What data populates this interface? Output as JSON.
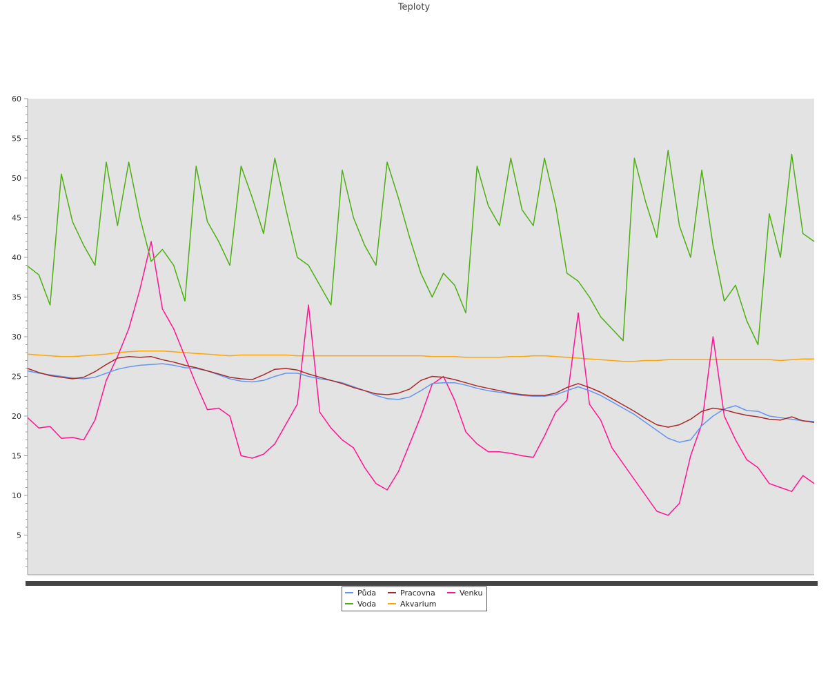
{
  "chart_data": {
    "type": "line",
    "title": "Teploty",
    "xlabel": "",
    "ylabel": "",
    "x_ticks_legible": false,
    "ylim": [
      0,
      60
    ],
    "yticks": [
      5,
      10,
      15,
      20,
      25,
      30,
      35,
      40,
      45,
      50,
      55,
      60
    ],
    "grid": false,
    "background": "#e3e3e3",
    "legend_position": "bottom-center",
    "x": [
      0,
      2,
      4,
      6,
      8,
      10,
      12,
      14,
      16,
      18,
      20,
      22,
      24,
      26,
      28,
      30,
      32,
      34,
      36,
      38,
      40,
      42,
      44,
      46,
      48,
      50,
      52,
      54,
      56,
      58,
      60,
      62,
      64,
      66,
      68,
      70,
      72,
      74,
      76,
      78,
      80,
      82,
      84,
      86,
      88,
      90,
      92,
      94,
      96,
      98,
      100,
      102,
      104,
      106,
      108,
      110,
      112,
      114,
      116,
      118,
      120,
      122,
      124,
      126,
      128,
      130,
      132,
      134,
      136,
      138,
      140
    ],
    "series": [
      {
        "name": "Půda",
        "color": "#6495ed",
        "values": [
          25.7,
          25.4,
          25.2,
          25.0,
          24.8,
          24.7,
          24.9,
          25.4,
          25.9,
          26.2,
          26.4,
          26.5,
          26.6,
          26.4,
          26.1,
          26.0,
          25.7,
          25.2,
          24.7,
          24.4,
          24.3,
          24.5,
          25.0,
          25.4,
          25.4,
          25.0,
          24.7,
          24.5,
          24.2,
          23.7,
          23.2,
          22.6,
          22.2,
          22.1,
          22.4,
          23.2,
          24.1,
          24.2,
          24.2,
          23.9,
          23.5,
          23.2,
          23.0,
          22.8,
          22.6,
          22.5,
          22.5,
          22.7,
          23.2,
          23.7,
          23.2,
          22.6,
          21.8,
          21.0,
          20.2,
          19.2,
          18.2,
          17.2,
          16.7,
          17.0,
          18.8,
          20.0,
          20.9,
          21.3,
          20.7,
          20.6,
          20.0,
          19.8,
          19.6,
          19.4,
          19.3
        ]
      },
      {
        "name": "Voda",
        "color": "#4caf10",
        "values": [
          38.9,
          37.8,
          34.0,
          50.5,
          44.5,
          41.5,
          39.0,
          52.0,
          44.0,
          52.0,
          45.0,
          39.5,
          41.0,
          39.0,
          34.5,
          51.5,
          44.5,
          42.0,
          39.0,
          51.5,
          47.5,
          43.0,
          52.5,
          46.0,
          40.0,
          39.0,
          36.5,
          34.0,
          51.0,
          45.0,
          41.5,
          39.0,
          52.0,
          47.5,
          42.5,
          38.0,
          35.0,
          38.0,
          36.5,
          33.0,
          51.5,
          46.5,
          44.0,
          52.5,
          46.0,
          44.0,
          52.5,
          46.5,
          38.0,
          37.0,
          35.0,
          32.5,
          31.0,
          29.5,
          52.5,
          47.0,
          42.5,
          53.5,
          44.0,
          40.0,
          51.0,
          41.5,
          34.5,
          36.5,
          32.0,
          29.0,
          45.5,
          40.0,
          53.0,
          43.0,
          42.0
        ]
      },
      {
        "name": "Pracovna",
        "color": "#a52a2a",
        "values": [
          26.0,
          25.5,
          25.1,
          24.9,
          24.7,
          24.9,
          25.6,
          26.5,
          27.3,
          27.5,
          27.4,
          27.5,
          27.1,
          26.8,
          26.4,
          26.1,
          25.7,
          25.3,
          24.9,
          24.7,
          24.6,
          25.2,
          25.9,
          26.0,
          25.8,
          25.3,
          24.9,
          24.5,
          24.1,
          23.6,
          23.2,
          22.8,
          22.7,
          22.9,
          23.4,
          24.5,
          25.0,
          24.9,
          24.6,
          24.2,
          23.8,
          23.5,
          23.2,
          22.9,
          22.7,
          22.6,
          22.6,
          22.9,
          23.6,
          24.1,
          23.6,
          23.0,
          22.2,
          21.4,
          20.6,
          19.7,
          18.9,
          18.6,
          18.9,
          19.6,
          20.6,
          21.0,
          20.8,
          20.4,
          20.1,
          19.9,
          19.6,
          19.5,
          19.9,
          19.4,
          19.2
        ]
      },
      {
        "name": "Akvarium",
        "color": "#ffa500",
        "values": [
          27.8,
          27.7,
          27.6,
          27.5,
          27.5,
          27.6,
          27.7,
          27.8,
          28.0,
          28.1,
          28.2,
          28.2,
          28.2,
          28.1,
          28.0,
          27.9,
          27.8,
          27.7,
          27.6,
          27.7,
          27.7,
          27.7,
          27.7,
          27.7,
          27.6,
          27.6,
          27.6,
          27.6,
          27.6,
          27.6,
          27.6,
          27.6,
          27.6,
          27.6,
          27.6,
          27.6,
          27.5,
          27.5,
          27.5,
          27.4,
          27.4,
          27.4,
          27.4,
          27.5,
          27.5,
          27.6,
          27.6,
          27.5,
          27.4,
          27.3,
          27.2,
          27.1,
          27.0,
          26.9,
          26.9,
          27.0,
          27.0,
          27.1,
          27.1,
          27.1,
          27.1,
          27.1,
          27.1,
          27.1,
          27.1,
          27.1,
          27.1,
          27.0,
          27.1,
          27.2,
          27.2
        ]
      },
      {
        "name": "Venku",
        "color": "#ff1493",
        "values": [
          19.8,
          18.5,
          18.7,
          17.2,
          17.3,
          17.0,
          19.5,
          24.5,
          27.5,
          31.0,
          36.0,
          42.0,
          33.5,
          31.0,
          27.5,
          24.0,
          20.8,
          21.0,
          20.0,
          15.0,
          14.7,
          15.2,
          16.5,
          19.0,
          21.5,
          34.0,
          20.5,
          18.5,
          17.0,
          16.0,
          13.5,
          11.5,
          10.7,
          13.0,
          16.5,
          20.0,
          24.0,
          25.0,
          22.0,
          18.0,
          16.5,
          15.5,
          15.5,
          15.3,
          15.0,
          14.8,
          17.5,
          20.5,
          22.0,
          33.0,
          21.5,
          19.5,
          16.0,
          14.0,
          12.0,
          10.0,
          8.0,
          7.5,
          9.0,
          15.0,
          19.0,
          30.0,
          20.0,
          17.0,
          14.5,
          13.5,
          11.5,
          11.0,
          10.5,
          12.5,
          11.5
        ]
      }
    ]
  }
}
